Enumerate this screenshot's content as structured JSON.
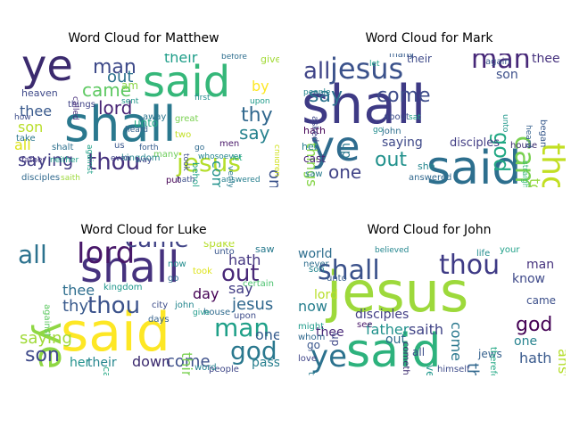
{
  "figure": {
    "panels": [
      {
        "title": "Word Cloud for Matthew",
        "words": [
          {
            "text": "ye",
            "color": "#3b2a6e"
          },
          {
            "text": "said",
            "color": "#35b779"
          },
          {
            "text": "shall",
            "color": "#2a788e"
          },
          {
            "text": "thou",
            "color": "#46327e"
          },
          {
            "text": "jesus",
            "color": "#b5de2b"
          },
          {
            "text": "man",
            "color": "#3e4a89"
          },
          {
            "text": "lord",
            "color": "#482475"
          },
          {
            "text": "came",
            "color": "#5ec962"
          },
          {
            "text": "saying",
            "color": "#433e85"
          },
          {
            "text": "thee",
            "color": "#38598c"
          },
          {
            "text": "son",
            "color": "#b8de29"
          },
          {
            "text": "all",
            "color": "#dde318"
          },
          {
            "text": "thy",
            "color": "#31688e"
          },
          {
            "text": "say",
            "color": "#26828e"
          },
          {
            "text": "out",
            "color": "#2c728e"
          },
          {
            "text": "one",
            "color": "#3b528b"
          },
          {
            "text": "by",
            "color": "#fde725"
          },
          {
            "text": "their",
            "color": "#1f9e89"
          },
          {
            "text": "come",
            "color": "#21918c"
          },
          {
            "text": "heaven",
            "color": "#3e4989"
          },
          {
            "text": "unto",
            "color": "#22a884"
          },
          {
            "text": "things",
            "color": "#414487"
          },
          {
            "text": "shalt",
            "color": "#2d708e"
          },
          {
            "text": "kingdom",
            "color": "#25858e"
          },
          {
            "text": "behold",
            "color": "#20a386"
          },
          {
            "text": "great",
            "color": "#7ad151"
          },
          {
            "text": "disciples",
            "color": "#30698e"
          },
          {
            "text": "father",
            "color": "#453781"
          },
          {
            "text": "neither",
            "color": "#1fa088"
          },
          {
            "text": "hath",
            "color": "#3c4f8a"
          },
          {
            "text": "answered",
            "color": "#277f8e"
          },
          {
            "text": "put",
            "color": "#440154"
          },
          {
            "text": "before",
            "color": "#2e6e8e"
          },
          {
            "text": "give",
            "color": "#a2da37"
          },
          {
            "text": "called",
            "color": "#472d7b"
          },
          {
            "text": "heard",
            "color": "#34618d"
          },
          {
            "text": "am",
            "color": "#8bd646"
          },
          {
            "text": "verily",
            "color": "#297b8e"
          },
          {
            "text": "children",
            "color": "#d0e11c"
          },
          {
            "text": "whosoever",
            "color": "#24868e"
          },
          {
            "text": "how",
            "color": "#3d4d8a"
          },
          {
            "text": "take",
            "color": "#2a768e"
          },
          {
            "text": "many",
            "color": "#6ccd5a"
          },
          {
            "text": "let",
            "color": "#27ad81"
          },
          {
            "text": "upon",
            "color": "#1e9b8a"
          },
          {
            "text": "away",
            "color": "#2b748e"
          },
          {
            "text": "saith",
            "color": "#9dd93b"
          },
          {
            "text": "men",
            "color": "#481769"
          },
          {
            "text": "us",
            "color": "#39568c"
          },
          {
            "text": "two",
            "color": "#c2df23"
          },
          {
            "text": "first",
            "color": "#228c8d"
          },
          {
            "text": "took",
            "color": "#3e4c8a"
          },
          {
            "text": "go",
            "color": "#2f6b8e"
          },
          {
            "text": "sent",
            "color": "#1f978b"
          },
          {
            "text": "forth",
            "color": "#365c8d"
          },
          {
            "text": "against",
            "color": "#1fa187"
          },
          {
            "text": "even",
            "color": "#404688"
          },
          {
            "text": "way",
            "color": "#3f4788"
          }
        ]
      },
      {
        "title": "Word Cloud for Mark",
        "words": [
          {
            "text": "shall",
            "color": "#3e3a85"
          },
          {
            "text": "said",
            "color": "#2d6f8e"
          },
          {
            "text": "ye",
            "color": "#2f6c8e"
          },
          {
            "text": "jesus",
            "color": "#3b528b"
          },
          {
            "text": "man",
            "color": "#472878"
          },
          {
            "text": "thou",
            "color": "#c2df23"
          },
          {
            "text": "all",
            "color": "#404588"
          },
          {
            "text": "came",
            "color": "#7ad151"
          },
          {
            "text": "come",
            "color": "#3e4c8a"
          },
          {
            "text": "say",
            "color": "#2c728e"
          },
          {
            "text": "out",
            "color": "#21918c"
          },
          {
            "text": "god",
            "color": "#22a884"
          },
          {
            "text": "one",
            "color": "#414487"
          },
          {
            "text": "saying",
            "color": "#3e4989"
          },
          {
            "text": "disciples",
            "color": "#433e85"
          },
          {
            "text": "thee",
            "color": "#46327e"
          },
          {
            "text": "things",
            "color": "#86d549"
          },
          {
            "text": "son",
            "color": "#3c4f8a"
          },
          {
            "text": "hath",
            "color": "#440154"
          },
          {
            "text": "took",
            "color": "#95d840"
          },
          {
            "text": "house",
            "color": "#3b2a6e"
          },
          {
            "text": "cast",
            "color": "#482475"
          },
          {
            "text": "began",
            "color": "#38598c"
          },
          {
            "text": "up",
            "color": "#2a788e"
          },
          {
            "text": "their",
            "color": "#3e4a89"
          },
          {
            "text": "many",
            "color": "#365d8d"
          },
          {
            "text": "again",
            "color": "#39568c"
          },
          {
            "text": "heard",
            "color": "#34618d"
          },
          {
            "text": "asked",
            "color": "#3f4788"
          },
          {
            "text": "about",
            "color": "#3d4e8a"
          },
          {
            "text": "answered",
            "color": "#31688e"
          },
          {
            "text": "john",
            "color": "#2e6e8e"
          },
          {
            "text": "people",
            "color": "#25858e"
          },
          {
            "text": "saw",
            "color": "#297b8e"
          },
          {
            "text": "her",
            "color": "#277f8e"
          },
          {
            "text": "she",
            "color": "#24868e"
          },
          {
            "text": "go",
            "color": "#228c8d"
          },
          {
            "text": "unto",
            "color": "#1f978b"
          },
          {
            "text": "sat",
            "color": "#1fa088"
          },
          {
            "text": "straightway",
            "color": "#38b977"
          },
          {
            "text": "let",
            "color": "#1f9e89"
          }
        ]
      },
      {
        "title": "Word Cloud for Luke",
        "words": [
          {
            "text": "shall",
            "color": "#46327e"
          },
          {
            "text": "ye",
            "color": "#8fd744"
          },
          {
            "text": "said",
            "color": "#fde725"
          },
          {
            "text": "thou",
            "color": "#3b528b"
          },
          {
            "text": "all",
            "color": "#2c728e"
          },
          {
            "text": "lord",
            "color": "#481769"
          },
          {
            "text": "came",
            "color": "#414487"
          },
          {
            "text": "man",
            "color": "#1fa088"
          },
          {
            "text": "god",
            "color": "#2a788e"
          },
          {
            "text": "say",
            "color": "#433e85"
          },
          {
            "text": "out",
            "color": "#482878"
          },
          {
            "text": "son",
            "color": "#3e4989"
          },
          {
            "text": "saying",
            "color": "#a0da39"
          },
          {
            "text": "come",
            "color": "#3c4f8a"
          },
          {
            "text": "jesus",
            "color": "#31688e"
          },
          {
            "text": "day",
            "color": "#440154"
          },
          {
            "text": "hath",
            "color": "#453781"
          },
          {
            "text": "thy",
            "color": "#38598c"
          },
          {
            "text": "thee",
            "color": "#2e6e8e"
          },
          {
            "text": "things",
            "color": "#7ad151"
          },
          {
            "text": "one",
            "color": "#365c8d"
          },
          {
            "text": "pass",
            "color": "#277f8e"
          },
          {
            "text": "her",
            "color": "#21918c"
          },
          {
            "text": "their",
            "color": "#25858e"
          },
          {
            "text": "down",
            "color": "#3b2a6e"
          },
          {
            "text": "unto",
            "color": "#39568c"
          },
          {
            "text": "upon",
            "color": "#3e4c8a"
          },
          {
            "text": "house",
            "color": "#2f6b8e"
          },
          {
            "text": "certain",
            "color": "#4ac16d"
          },
          {
            "text": "spake",
            "color": "#b5de2b"
          },
          {
            "text": "kingdom",
            "color": "#1f978b"
          },
          {
            "text": "days",
            "color": "#34618d"
          },
          {
            "text": "saw",
            "color": "#297b8e"
          },
          {
            "text": "called",
            "color": "#22a884"
          },
          {
            "text": "city",
            "color": "#3d4d8a"
          },
          {
            "text": "people",
            "color": "#3f4788"
          },
          {
            "text": "john",
            "color": "#24868e"
          },
          {
            "text": "now",
            "color": "#228c8d"
          },
          {
            "text": "go",
            "color": "#30698e"
          },
          {
            "text": "against",
            "color": "#5ec962"
          },
          {
            "text": "took",
            "color": "#dde318"
          },
          {
            "text": "word",
            "color": "#26828e"
          },
          {
            "text": "give",
            "color": "#1e9b8a"
          }
        ]
      },
      {
        "title": "Word Cloud for John",
        "words": [
          {
            "text": "jesus",
            "color": "#9dd93b"
          },
          {
            "text": "said",
            "color": "#2db27d"
          },
          {
            "text": "thou",
            "color": "#3e3a85"
          },
          {
            "text": "shall",
            "color": "#3b528b"
          },
          {
            "text": "ye",
            "color": "#2c728e"
          },
          {
            "text": "world",
            "color": "#2e6e8e"
          },
          {
            "text": "father",
            "color": "#21918c"
          },
          {
            "text": "saith",
            "color": "#414487"
          },
          {
            "text": "know",
            "color": "#3e4989"
          },
          {
            "text": "disciples",
            "color": "#433e85"
          },
          {
            "text": "man",
            "color": "#46327e"
          },
          {
            "text": "things",
            "color": "#31688e"
          },
          {
            "text": "god",
            "color": "#440154"
          },
          {
            "text": "hath",
            "color": "#38598c"
          },
          {
            "text": "answered",
            "color": "#b5de2b"
          },
          {
            "text": "come",
            "color": "#2a788e"
          },
          {
            "text": "came",
            "color": "#3c4f8a"
          },
          {
            "text": "now",
            "color": "#277f8e"
          },
          {
            "text": "one",
            "color": "#26828e"
          },
          {
            "text": "thee",
            "color": "#482878"
          },
          {
            "text": "jews",
            "color": "#34618d"
          },
          {
            "text": "lord",
            "color": "#b8de29"
          },
          {
            "text": "out",
            "color": "#2f6b8e"
          },
          {
            "text": "verily",
            "color": "#1f978b"
          },
          {
            "text": "son",
            "color": "#25858e"
          },
          {
            "text": "all",
            "color": "#3d4d8a"
          },
          {
            "text": "up",
            "color": "#3f4788"
          },
          {
            "text": "believed",
            "color": "#24868e"
          },
          {
            "text": "life",
            "color": "#228c8d"
          },
          {
            "text": "your",
            "color": "#1fa088"
          },
          {
            "text": "whom",
            "color": "#30698e"
          },
          {
            "text": "go",
            "color": "#39568c"
          },
          {
            "text": "might",
            "color": "#1e9b8a"
          },
          {
            "text": "truth",
            "color": "#297b8e"
          },
          {
            "text": "himself",
            "color": "#3e4c8a"
          },
          {
            "text": "therefore",
            "color": "#22a884"
          },
          {
            "text": "unto",
            "color": "#365c8d"
          },
          {
            "text": "see",
            "color": "#481769"
          },
          {
            "text": "cometh",
            "color": "#3b2a6e"
          },
          {
            "text": "never",
            "color": "#2e6e8e"
          },
          {
            "text": "love",
            "color": "#404588"
          }
        ]
      }
    ]
  }
}
